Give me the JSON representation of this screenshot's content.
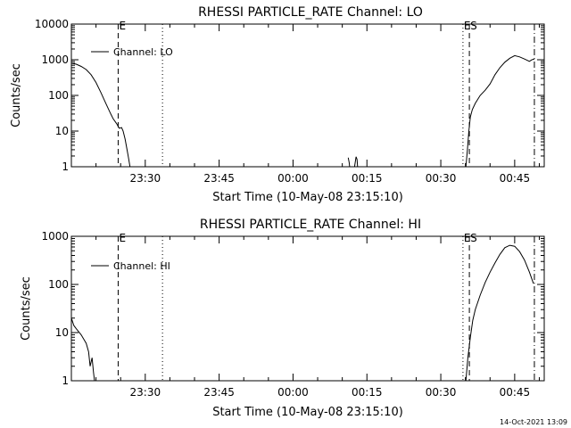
{
  "chart_data": [
    {
      "type": "line",
      "title": "RHESSI PARTICLE_RATE Channel: LO",
      "xlabel": "Start Time (10-May-08 23:15:10)",
      "ylabel": "Counts/sec",
      "yscale": "log",
      "xlim_minutes": [
        0,
        96
      ],
      "ylim": [
        1,
        10000
      ],
      "xticks": [
        {
          "min": 15,
          "label": "23:30"
        },
        {
          "min": 30,
          "label": "23:45"
        },
        {
          "min": 45,
          "label": "00:00"
        },
        {
          "min": 60,
          "label": "00:15"
        },
        {
          "min": 75,
          "label": "00:30"
        },
        {
          "min": 90,
          "label": "00:45"
        }
      ],
      "yticks": [
        {
          "value": 1,
          "label": "1"
        },
        {
          "value": 10,
          "label": "10"
        },
        {
          "value": 100,
          "label": "100"
        },
        {
          "value": 1000,
          "label": "1000"
        },
        {
          "value": 10000,
          "label": "10000"
        }
      ],
      "legend": {
        "label": "Channel: LO",
        "placement": "top-left"
      },
      "markers": [
        {
          "min": 9.5,
          "style": "dashed",
          "label": "E"
        },
        {
          "min": 18.5,
          "style": "dotted",
          "label": ""
        },
        {
          "min": 79.5,
          "style": "dotted",
          "label": "E"
        },
        {
          "min": 80.8,
          "style": "dashed",
          "label": "S"
        },
        {
          "min": 94.0,
          "style": "dashdot",
          "label": ""
        }
      ],
      "series": [
        {
          "name": "Channel: LO",
          "segments": [
            [
              [
                0,
                800
              ],
              [
                1,
                750
              ],
              [
                2,
                650
              ],
              [
                3,
                530
              ],
              [
                4,
                380
              ],
              [
                5,
                230
              ],
              [
                6,
                120
              ],
              [
                7,
                60
              ],
              [
                8,
                30
              ],
              [
                8.5,
                22
              ],
              [
                9.2,
                16
              ],
              [
                9.7,
                12
              ],
              [
                10.2,
                12.5
              ],
              [
                10.5,
                10
              ],
              [
                10.9,
                6
              ],
              [
                11.3,
                3
              ],
              [
                11.6,
                1.8
              ],
              [
                11.9,
                1
              ]
            ],
            [
              [
                56.2,
                1.8
              ],
              [
                56.4,
                1.3
              ],
              [
                56.5,
                1
              ]
            ],
            [
              [
                57.5,
                1
              ],
              [
                57.8,
                1.9
              ],
              [
                58,
                1.6
              ],
              [
                58.1,
                1
              ]
            ],
            [
              [
                80.1,
                1
              ],
              [
                80.4,
                3
              ],
              [
                80.7,
                10
              ],
              [
                81,
                25
              ],
              [
                81.4,
                40
              ],
              [
                82,
                60
              ],
              [
                83,
                100
              ],
              [
                84,
                140
              ],
              [
                85,
                210
              ],
              [
                86,
                380
              ],
              [
                87,
                600
              ],
              [
                88,
                850
              ],
              [
                89,
                1100
              ],
              [
                90,
                1300
              ],
              [
                91,
                1200
              ],
              [
                92,
                1050
              ],
              [
                93,
                900
              ],
              [
                93.5,
                1000
              ],
              [
                94,
                1050
              ]
            ]
          ]
        }
      ]
    },
    {
      "type": "line",
      "title": "RHESSI PARTICLE_RATE Channel: HI",
      "xlabel": "Start Time (10-May-08 23:15:10)",
      "ylabel": "Counts/sec",
      "yscale": "log",
      "xlim_minutes": [
        0,
        96
      ],
      "ylim": [
        1,
        1000
      ],
      "xticks": [
        {
          "min": 15,
          "label": "23:30"
        },
        {
          "min": 30,
          "label": "23:45"
        },
        {
          "min": 45,
          "label": "00:00"
        },
        {
          "min": 60,
          "label": "00:15"
        },
        {
          "min": 75,
          "label": "00:30"
        },
        {
          "min": 90,
          "label": "00:45"
        }
      ],
      "yticks": [
        {
          "value": 1,
          "label": "1"
        },
        {
          "value": 10,
          "label": "10"
        },
        {
          "value": 100,
          "label": "100"
        },
        {
          "value": 1000,
          "label": "1000"
        }
      ],
      "legend": {
        "label": "Channel: HI",
        "placement": "top-left"
      },
      "markers": [
        {
          "min": 9.5,
          "style": "dashed",
          "label": "E"
        },
        {
          "min": 18.5,
          "style": "dotted",
          "label": ""
        },
        {
          "min": 79.5,
          "style": "dotted",
          "label": "E"
        },
        {
          "min": 80.8,
          "style": "dashed",
          "label": "S"
        },
        {
          "min": 94.0,
          "style": "dashdot",
          "label": ""
        }
      ],
      "series": [
        {
          "name": "Channel: HI",
          "segments": [
            [
              [
                0,
                20
              ],
              [
                0.5,
                14
              ],
              [
                1,
                12
              ],
              [
                2,
                9
              ],
              [
                3,
                6
              ],
              [
                3.5,
                4
              ],
              [
                3.8,
                2
              ],
              [
                4.2,
                3
              ],
              [
                4.5,
                1.5
              ],
              [
                4.7,
                1
              ]
            ],
            [
              [
                80.1,
                1
              ],
              [
                80.5,
                3
              ],
              [
                81,
                8
              ],
              [
                81.5,
                18
              ],
              [
                82,
                30
              ],
              [
                83,
                60
              ],
              [
                84,
                110
              ],
              [
                85,
                180
              ],
              [
                86,
                280
              ],
              [
                87,
                420
              ],
              [
                88,
                580
              ],
              [
                89,
                650
              ],
              [
                90,
                620
              ],
              [
                91,
                480
              ],
              [
                92,
                320
              ],
              [
                93,
                180
              ],
              [
                93.8,
                105
              ]
            ]
          ]
        }
      ]
    }
  ],
  "footer": {
    "timestamp": "14-Oct-2021 13:09"
  }
}
